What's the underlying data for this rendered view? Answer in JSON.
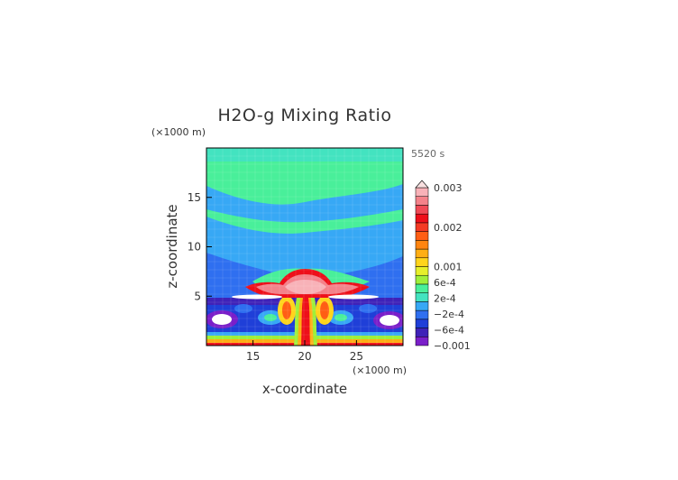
{
  "chart_data": {
    "type": "heatmap",
    "title": "H2O-g Mixing Ratio",
    "time_label": "5520 s",
    "xlabel": "x-coordinate",
    "ylabel": "z-coordinate",
    "x_unit": "(×1000 m)",
    "y_unit": "(×1000 m)",
    "xlim": [
      10.5,
      29.5
    ],
    "ylim": [
      0,
      20
    ],
    "x_ticks": [
      {
        "v": 15,
        "label": "15"
      },
      {
        "v": 20,
        "label": "20"
      },
      {
        "v": 25,
        "label": "25"
      }
    ],
    "y_ticks": [
      {
        "v": 5,
        "label": "5"
      },
      {
        "v": 10,
        "label": "10"
      },
      {
        "v": 15,
        "label": "15"
      }
    ],
    "colorbar": {
      "min": -0.001,
      "max": 0.003,
      "labels": [
        {
          "v": 0.003,
          "label": "0.003"
        },
        {
          "v": 0.002,
          "label": "0.002"
        },
        {
          "v": 0.001,
          "label": "0.001"
        },
        {
          "v": 0.0006,
          "label": "6e-4"
        },
        {
          "v": 0.0002,
          "label": "2e-4"
        },
        {
          "v": -0.0002,
          "label": "−2e-4"
        },
        {
          "v": -0.0006,
          "label": "−6e-4"
        },
        {
          "v": -0.001,
          "label": "−0.001"
        }
      ],
      "colors": [
        "#7a1fc9",
        "#3f22b8",
        "#1f3fd8",
        "#2f6ff0",
        "#37a8f5",
        "#43e3c0",
        "#49ef9a",
        "#9fef3a",
        "#e6ef2a",
        "#ffd41c",
        "#ffae14",
        "#ff8510",
        "#ff5e14",
        "#f43a24",
        "#ee0f1a",
        "#f04a56",
        "#f4828a",
        "#f8b2b8"
      ]
    }
  }
}
